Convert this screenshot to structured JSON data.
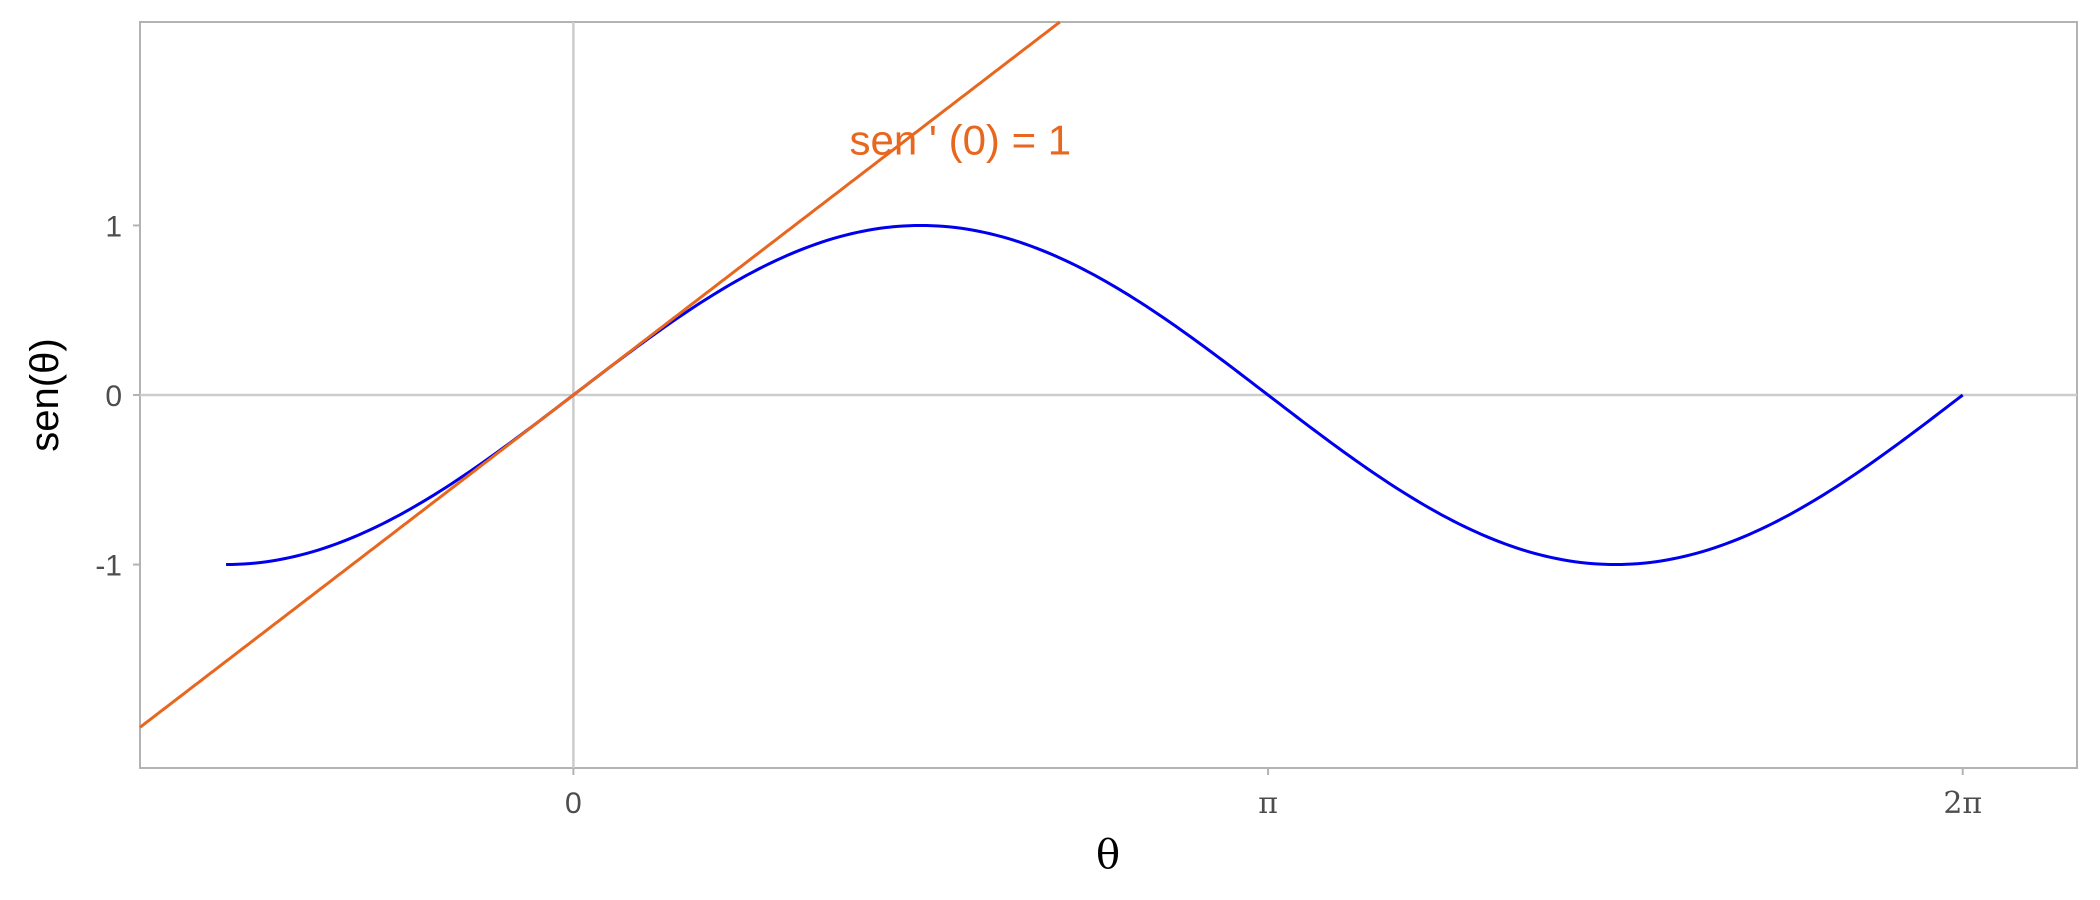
{
  "chart_data": {
    "type": "line",
    "xlabel": "θ",
    "ylabel": "sen(θ)",
    "xlim": [
      -1.96,
      6.8
    ],
    "ylim": [
      -2.2,
      2.2
    ],
    "x_ticks": [
      {
        "value": 0,
        "label": "0"
      },
      {
        "value": 3.14159,
        "label": "π"
      },
      {
        "value": 6.28319,
        "label": "2π"
      }
    ],
    "y_ticks": [
      {
        "value": 1,
        "label": "1"
      },
      {
        "value": 0,
        "label": "0"
      },
      {
        "value": -1,
        "label": "-1"
      }
    ],
    "reference_lines": [
      {
        "axis": "x",
        "value": 0
      },
      {
        "axis": "y",
        "value": 0
      }
    ],
    "grid": false,
    "series": [
      {
        "function": "sin(x)",
        "domain": [
          -1.5708,
          6.28319
        ],
        "color": "#0000ee"
      },
      {
        "function": "x",
        "domain": [
          -1.96,
          2.2
        ],
        "color": "#e8671f"
      }
    ],
    "annotations": [
      {
        "text": "sen ' (0) = 1",
        "x": 1.75,
        "y": 1.5,
        "color": "#e8671f"
      }
    ]
  }
}
